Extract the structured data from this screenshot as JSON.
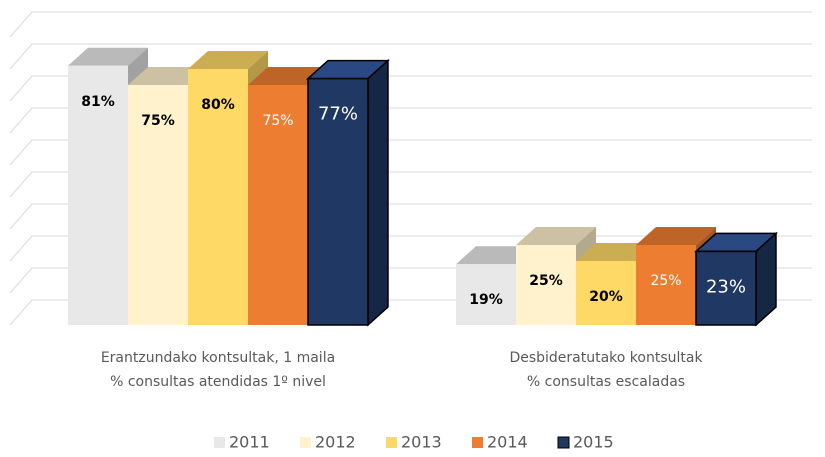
{
  "chart_data": {
    "type": "bar3d",
    "categories": [
      [
        "Erantzundako kontsultak, 1 maila",
        "% consultas atendidas 1º nivel"
      ],
      [
        "Desbideratutako kontsultak",
        "% consultas escaladas"
      ]
    ],
    "series": [
      {
        "name": "2011",
        "color": "#e8e8e8",
        "values": [
          81,
          19
        ],
        "value_labels": [
          "81%",
          "19%"
        ]
      },
      {
        "name": "2012",
        "color": "#fff2cc",
        "values": [
          75,
          25
        ],
        "value_labels": [
          "75%",
          "25%"
        ]
      },
      {
        "name": "2013",
        "color": "#ffd966",
        "values": [
          80,
          20
        ],
        "value_labels": [
          "80%",
          "20%"
        ]
      },
      {
        "name": "2014",
        "color": "#ed7d31",
        "values": [
          75,
          25
        ],
        "value_labels": [
          "75%",
          "25%"
        ]
      },
      {
        "name": "2015",
        "color": "#203864",
        "values": [
          77,
          23
        ],
        "value_labels": [
          "77%",
          "23%"
        ]
      }
    ],
    "ylim": [
      0,
      90
    ],
    "yticks": [
      0,
      10,
      20,
      30,
      40,
      50,
      60,
      70,
      80,
      90
    ],
    "grid": true,
    "legend": "bottom"
  }
}
